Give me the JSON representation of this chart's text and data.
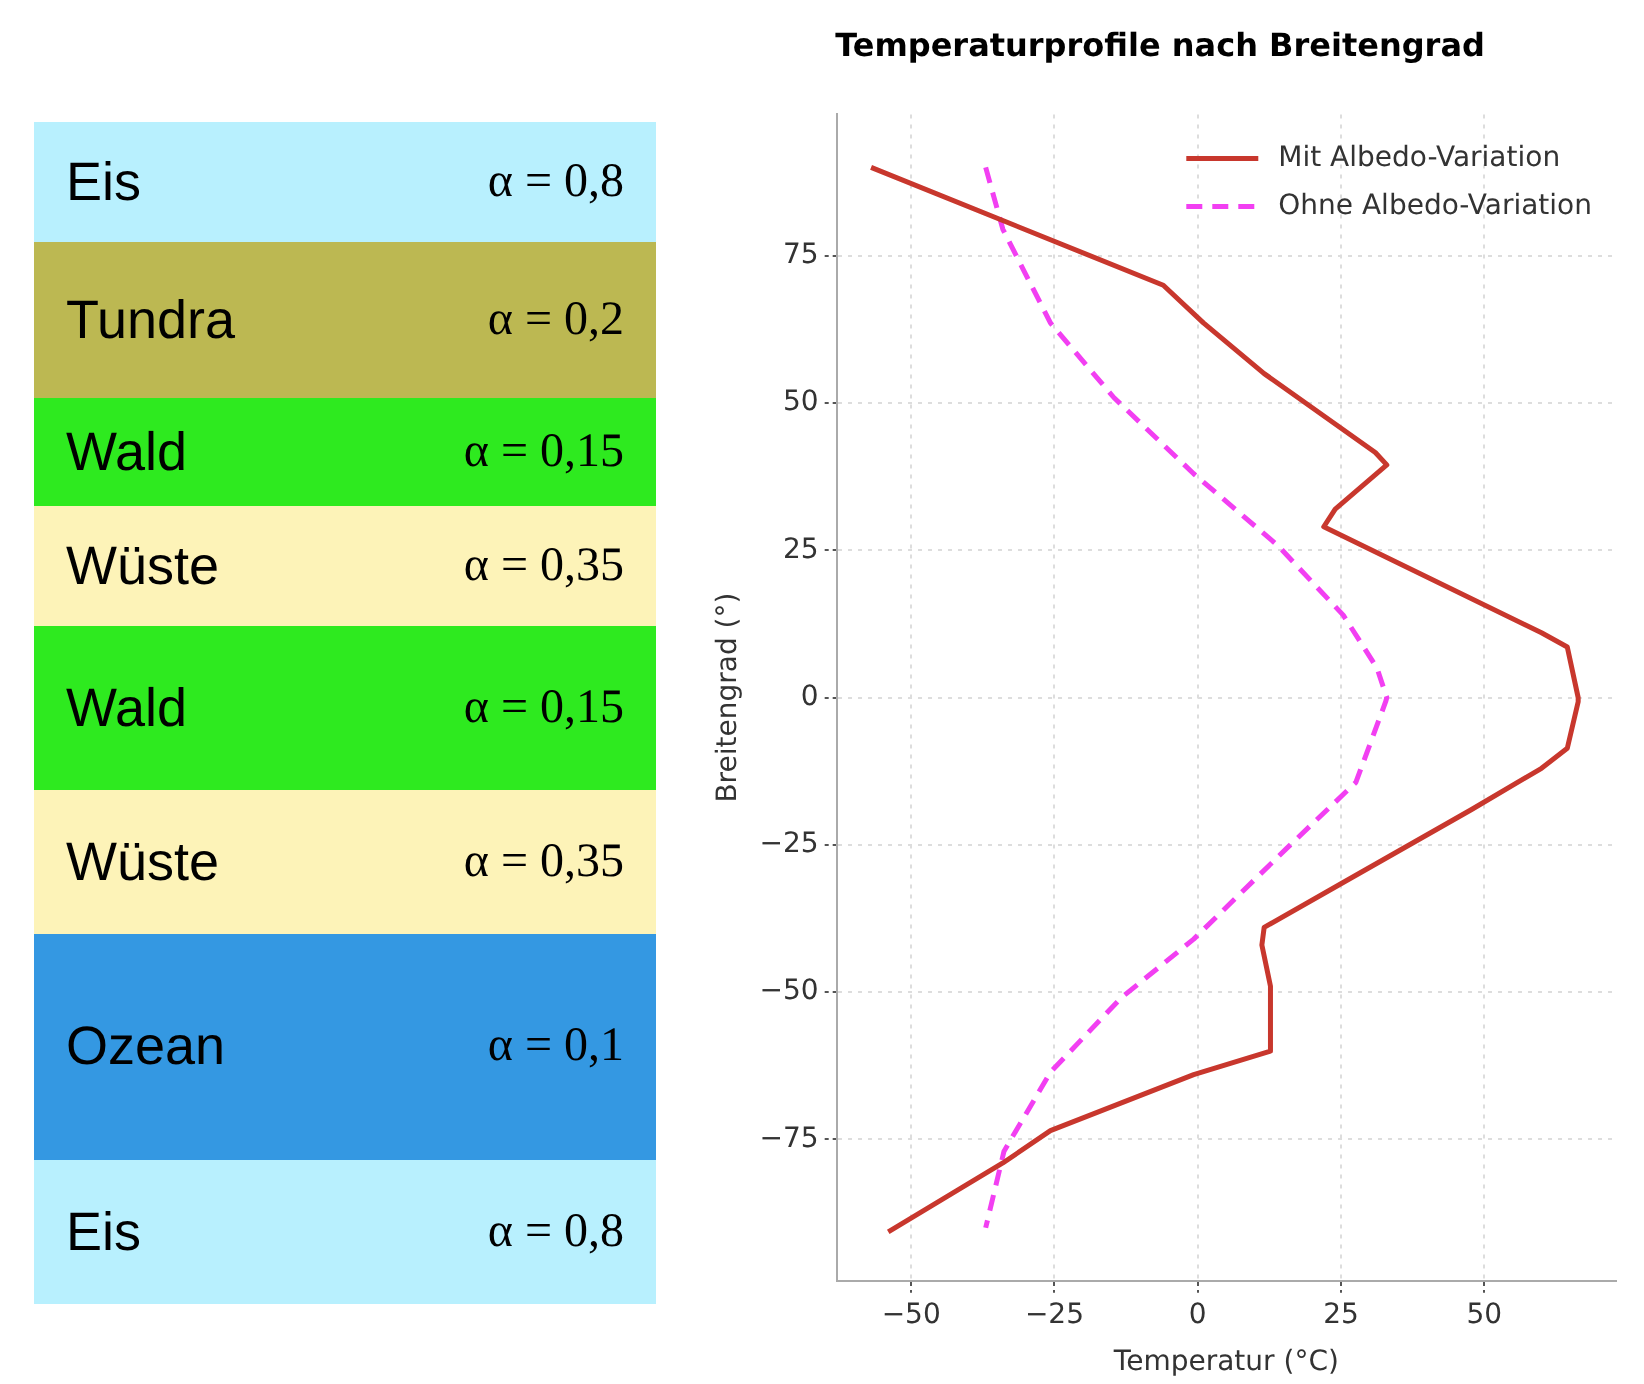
{
  "chart_data": [
    {
      "type": "other",
      "categories": [
        "Eis",
        "Tundra",
        "Wald",
        "Wüste",
        "Wald",
        "Wüste",
        "Ozean",
        "Eis"
      ],
      "value_labels": [
        "α = 0,8",
        "α = 0,2",
        "α = 0,15",
        "α = 0,35",
        "α = 0,15",
        "α = 0,35",
        "α = 0,1",
        "α = 0,8"
      ],
      "colors": [
        "#b8f0fe",
        "#bcb852",
        "#2eea1f",
        "#fdf3b8",
        "#2eea1f",
        "#fdf3b8",
        "#3498e2",
        "#b8f0fe"
      ]
    },
    {
      "type": "line",
      "title": "Temperaturprofile nach Breitengrad",
      "xlabel": "Temperatur (°C)",
      "ylabel": "Breitengrad (°)",
      "series": [
        {
          "name": "Mit Albedo-Variation",
          "color": "#c8372d",
          "line_style": "solid",
          "x": [
            -57,
            -6,
            1,
            11.6,
            31,
            33,
            24,
            22,
            60,
            64.5,
            66.4,
            66.4,
            64.5,
            60,
            47.8,
            25,
            11.6,
            11.2,
            12.7,
            12.7,
            -0.7,
            -25.7,
            -34,
            -54
          ],
          "values": [
            90,
            70,
            63.6,
            55,
            41.6,
            39.5,
            32,
            29,
            11,
            8.6,
            0,
            -0.7,
            -8.6,
            -12,
            -19,
            -31.6,
            -39,
            -42,
            -49,
            -60,
            -64,
            -73.5,
            -79,
            -90.7
          ]
        },
        {
          "name": "Ohne Albedo-Variation",
          "color": "#f23ff2",
          "line_style": "dashed",
          "x": [
            -37,
            -34,
            -25.7,
            -14.6,
            -0.7,
            14,
            25.4,
            31.3,
            33,
            32.8,
            27.6,
            15.3,
            -0.7,
            -13.4,
            -25.7,
            -33.8,
            -37
          ],
          "values": [
            90,
            79.5,
            63.6,
            50.9,
            38,
            25.8,
            14,
            5,
            0,
            -0.7,
            -14.4,
            -25.8,
            -41,
            -51,
            -63.6,
            -77,
            -90
          ]
        }
      ],
      "xlim": [
        -63,
        73
      ],
      "xticks": [
        -50,
        -25,
        0,
        25,
        50
      ],
      "ylim": [
        -99,
        99
      ],
      "yticks": [
        -75,
        -50,
        -25,
        0,
        25,
        50,
        75
      ],
      "grid": true,
      "legend": "top right",
      "marker": "none"
    }
  ]
}
